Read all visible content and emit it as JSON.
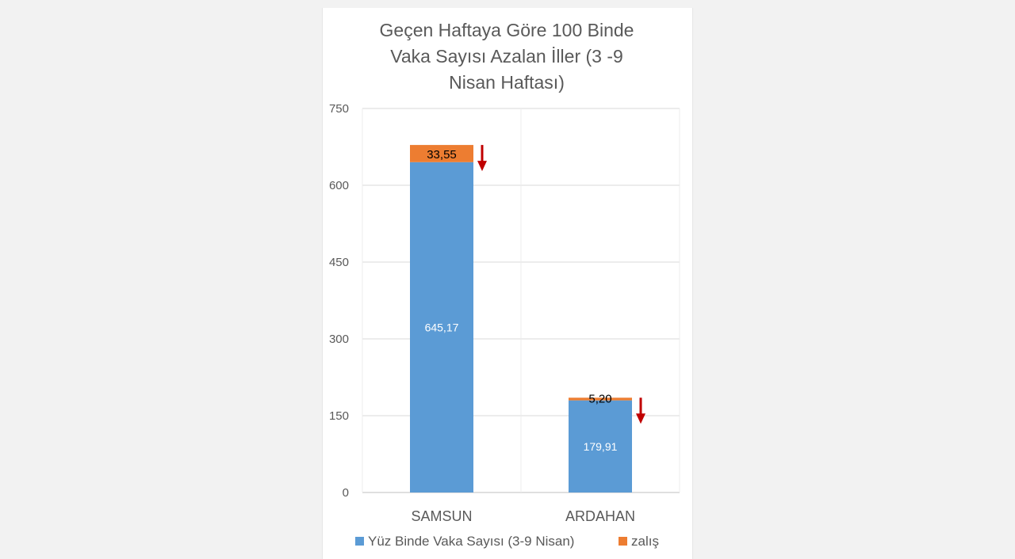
{
  "chart_data": {
    "type": "bar",
    "stacked": true,
    "title_lines": [
      "Geçen Haftaya Göre 100 Binde",
      "Vaka Sayısı Azalan İller (3 -9",
      "Nisan Haftası)"
    ],
    "categories": [
      "SAMSUN",
      "ARDAHAN"
    ],
    "series": [
      {
        "name": "Yüz Binde Vaka Sayısı (3-9 Nisan)",
        "values": [
          645.17,
          179.91
        ],
        "labels": [
          "645,17",
          "179,91"
        ],
        "color": "#5b9bd5"
      },
      {
        "name": "zalış",
        "values": [
          33.55,
          5.2
        ],
        "labels": [
          "33,55",
          "5,20"
        ],
        "color": "#ed7d31"
      }
    ],
    "ylim": [
      0,
      750
    ],
    "yticks": [
      0,
      150,
      300,
      450,
      600,
      750
    ],
    "ytick_labels": [
      "0",
      "150",
      "300",
      "450",
      "600",
      "750"
    ],
    "grid": true,
    "legend_position": "bottom",
    "decrease_arrow_color": "#c00000"
  }
}
